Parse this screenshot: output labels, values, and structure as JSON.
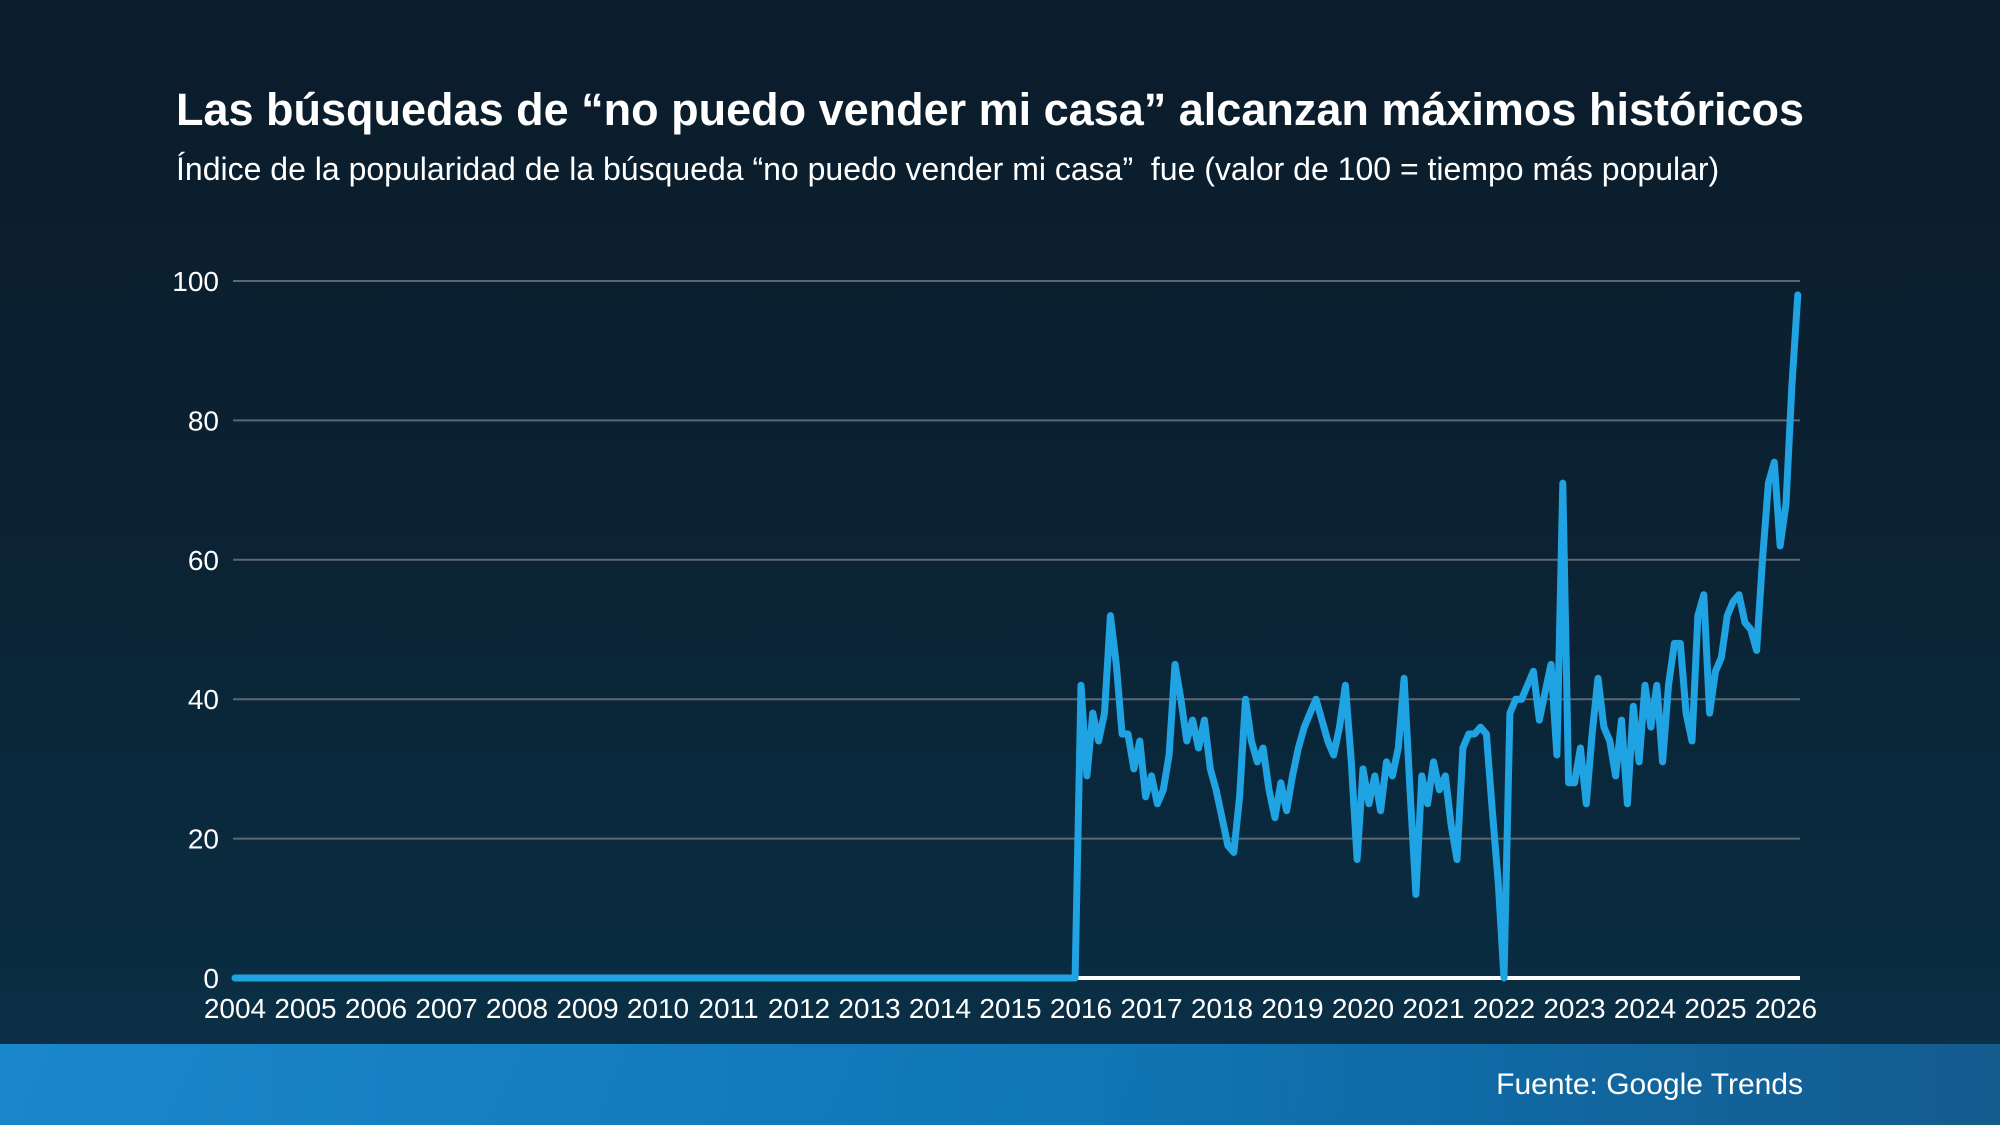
{
  "footer": {
    "source_label": "Fuente: Google Trends"
  },
  "chart_data": {
    "type": "line",
    "title": "Las búsquedas de “no puedo vender mi casa” alcanzan máximos históricos",
    "subtitle": "Índice de la popularidad de la búsqueda “no puedo vender mi casa”  fue (valor de 100 = tiempo más popular)",
    "unit_note": "valor de 100 = tiempo más popular",
    "frequency": "monthly",
    "start": "2004-01",
    "end": "2026-03",
    "ylim": [
      0,
      100
    ],
    "y_ticks": [
      0,
      20,
      40,
      60,
      80,
      100
    ],
    "x_ticks": [
      2004,
      2005,
      2006,
      2007,
      2008,
      2009,
      2010,
      2011,
      2012,
      2013,
      2014,
      2015,
      2016,
      2017,
      2018,
      2019,
      2020,
      2021,
      2022,
      2023,
      2024,
      2025,
      2026
    ],
    "grid": "horizontal-only",
    "legend": "none",
    "line_color": "#20a3e2",
    "axis_color": "#ffffff",
    "gridline_color": "#5c6871",
    "years": [
      {
        "year": 2004,
        "values": [
          0,
          0,
          0,
          0,
          0,
          0,
          0,
          0,
          0,
          0,
          0,
          0
        ]
      },
      {
        "year": 2005,
        "values": [
          0,
          0,
          0,
          0,
          0,
          0,
          0,
          0,
          0,
          0,
          0,
          0
        ]
      },
      {
        "year": 2006,
        "values": [
          0,
          0,
          0,
          0,
          0,
          0,
          0,
          0,
          0,
          0,
          0,
          0
        ]
      },
      {
        "year": 2007,
        "values": [
          0,
          0,
          0,
          0,
          0,
          0,
          0,
          0,
          0,
          0,
          0,
          0
        ]
      },
      {
        "year": 2008,
        "values": [
          0,
          0,
          0,
          0,
          0,
          0,
          0,
          0,
          0,
          0,
          0,
          0
        ]
      },
      {
        "year": 2009,
        "values": [
          0,
          0,
          0,
          0,
          0,
          0,
          0,
          0,
          0,
          0,
          0,
          0
        ]
      },
      {
        "year": 2010,
        "values": [
          0,
          0,
          0,
          0,
          0,
          0,
          0,
          0,
          0,
          0,
          0,
          0
        ]
      },
      {
        "year": 2011,
        "values": [
          0,
          0,
          0,
          0,
          0,
          0,
          0,
          0,
          0,
          0,
          0,
          0
        ]
      },
      {
        "year": 2012,
        "values": [
          0,
          0,
          0,
          0,
          0,
          0,
          0,
          0,
          0,
          0,
          0,
          0
        ]
      },
      {
        "year": 2013,
        "values": [
          0,
          0,
          0,
          0,
          0,
          0,
          0,
          0,
          0,
          0,
          0,
          0
        ]
      },
      {
        "year": 2014,
        "values": [
          0,
          0,
          0,
          0,
          0,
          0,
          0,
          0,
          0,
          0,
          0,
          0
        ]
      },
      {
        "year": 2015,
        "values": [
          0,
          0,
          0,
          0,
          0,
          0,
          0,
          0,
          0,
          0,
          0,
          0
        ]
      },
      {
        "year": 2016,
        "values": [
          42,
          29,
          38,
          34,
          38,
          52,
          45,
          35,
          35,
          30,
          34,
          26
        ]
      },
      {
        "year": 2017,
        "values": [
          29,
          25,
          27,
          32,
          45,
          40,
          34,
          37,
          33,
          37,
          30,
          27
        ]
      },
      {
        "year": 2018,
        "values": [
          23,
          19,
          18,
          26,
          40,
          34,
          31,
          33,
          27,
          23,
          28,
          24
        ]
      },
      {
        "year": 2019,
        "values": [
          29,
          33,
          36,
          38,
          40,
          37,
          34,
          32,
          36,
          42,
          31,
          17
        ]
      },
      {
        "year": 2020,
        "values": [
          30,
          25,
          29,
          24,
          31,
          29,
          33,
          43,
          27,
          12,
          29,
          25
        ]
      },
      {
        "year": 2021,
        "values": [
          31,
          27,
          29,
          22,
          17,
          33,
          35,
          35,
          36,
          35,
          24,
          14
        ]
      },
      {
        "year": 2022,
        "values": [
          0,
          38,
          40,
          40,
          42,
          44,
          37,
          41,
          45,
          32,
          71,
          28
        ]
      },
      {
        "year": 2023,
        "values": [
          28,
          33,
          25,
          35,
          43,
          36,
          34,
          29,
          37,
          25,
          39,
          31
        ]
      },
      {
        "year": 2024,
        "values": [
          42,
          36,
          42,
          31,
          42,
          48,
          48,
          38,
          34,
          52,
          55,
          38
        ]
      },
      {
        "year": 2025,
        "values": [
          44,
          46,
          52,
          54,
          55,
          51,
          50,
          47,
          60,
          71,
          74,
          62
        ]
      },
      {
        "year": 2026,
        "values": [
          68,
          85,
          98
        ]
      }
    ]
  }
}
